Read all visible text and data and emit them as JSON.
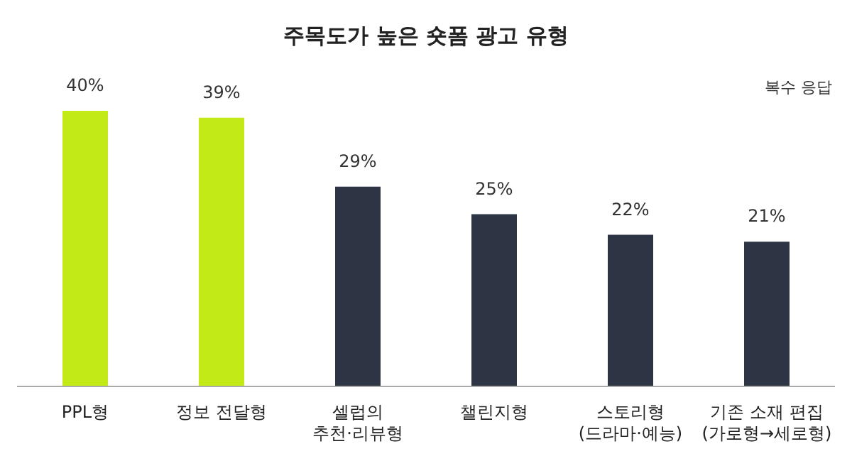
{
  "chart_data": {
    "type": "bar",
    "title": "주목도가 높은 숏폼 광고 유형",
    "annotations": [
      "복수 응답"
    ],
    "categories": [
      "PPL형",
      "정보 전달형",
      "셀럽의\n추천·리뷰형",
      "챌린지형",
      "스토리형\n(드라마·예능)",
      "기존 소재 편집\n(가로형→세로형)"
    ],
    "values": [
      40,
      39,
      29,
      25,
      22,
      21
    ],
    "colors": [
      "#c2ea17",
      "#c2ea17",
      "#2d3444",
      "#2d3444",
      "#2d3444",
      "#2d3444"
    ],
    "value_labels": [
      "40%",
      "39%",
      "29%",
      "25%",
      "22%",
      "21%"
    ],
    "grid": false,
    "legend": false
  }
}
